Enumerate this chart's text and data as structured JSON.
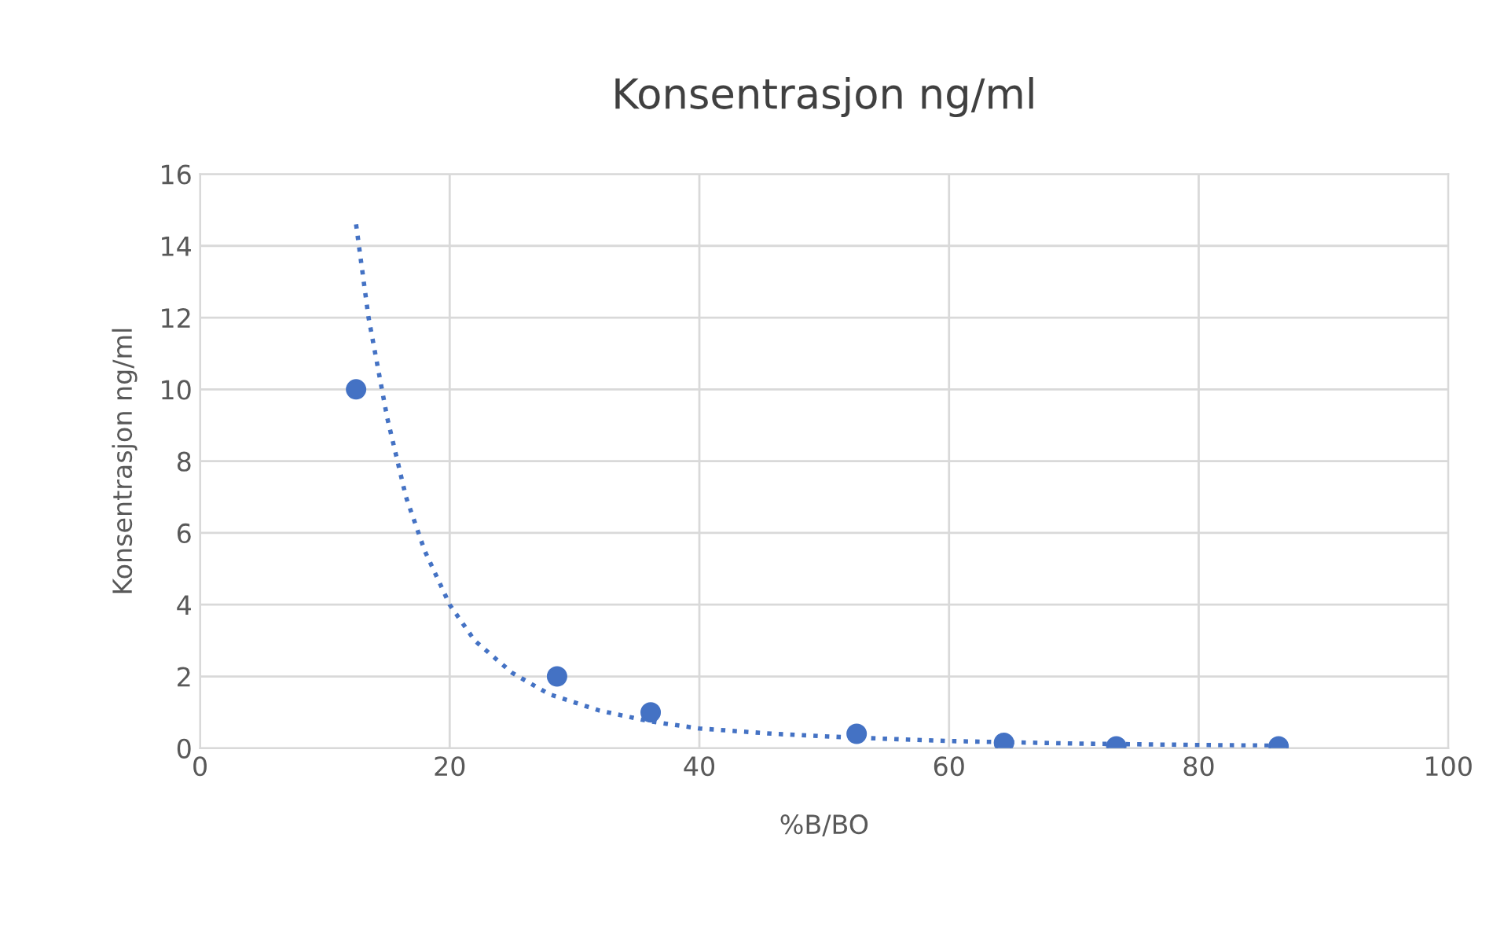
{
  "chart_data": {
    "type": "scatter",
    "title": "Konsentrasjon ng/ml",
    "xlabel": "%B/BO",
    "ylabel": "Konsentrasjon ng/ml",
    "xlim": [
      0,
      100
    ],
    "xticks": [
      0,
      20,
      40,
      60,
      80,
      100
    ],
    "ylim": [
      0,
      16
    ],
    "yticks": [
      0,
      2,
      4,
      6,
      8,
      10,
      12,
      14,
      16
    ],
    "grid": true,
    "legend": false,
    "series": [
      {
        "color": "#4472c4",
        "marker": "circle",
        "x": [
          12.5,
          28.6,
          36.1,
          52.6,
          64.4,
          73.4,
          86.4
        ],
        "values": [
          10,
          2,
          1,
          0.4,
          0.15,
          0.05,
          0.05
        ]
      },
      {
        "type": "line",
        "color": "#4472c4",
        "line_style": "dotted",
        "marker": "none",
        "x": [
          12.5,
          13.5,
          15,
          16.5,
          18,
          20,
          22,
          25,
          28,
          32,
          36,
          40,
          46,
          52,
          60,
          70,
          80,
          86.4
        ],
        "values": [
          14.6,
          12.0,
          9.2,
          7.0,
          5.5,
          4.0,
          3.0,
          2.1,
          1.5,
          1.05,
          0.75,
          0.55,
          0.4,
          0.3,
          0.2,
          0.13,
          0.09,
          0.07
        ]
      }
    ]
  }
}
